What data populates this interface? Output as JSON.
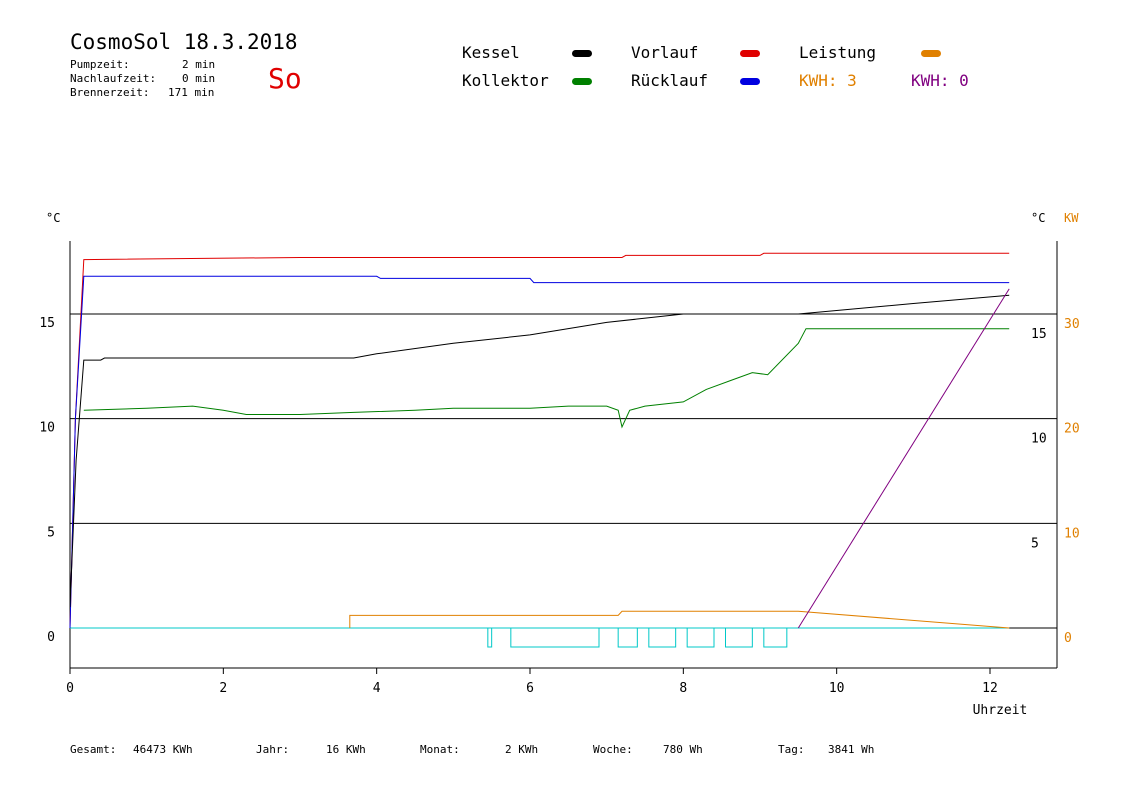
{
  "header": {
    "title": "CosmoSol 18.3.2018",
    "pump_label": "Pumpzeit:",
    "pump_value": "2 min",
    "nachlauf_label": "Nachlaufzeit:",
    "nachlauf_value": "0 min",
    "brenner_label": "Brennerzeit:",
    "brenner_value": "171 min",
    "weekday": "So"
  },
  "legend": {
    "kessel": "Kessel",
    "kollektor": "Kollektor",
    "vorlauf": "Vorlauf",
    "ruecklauf": "Rücklauf",
    "leistung": "Leistung",
    "kwh1": "KWH: 3",
    "kwh2": "KWH: 0"
  },
  "colors": {
    "kessel": "#000000",
    "kollektor": "#008000",
    "vorlauf": "#e00000",
    "ruecklauf": "#0000e0",
    "leistung": "#e08000",
    "kwh2": "#800080",
    "pump": "#00c8c8"
  },
  "footer": {
    "gesamt_label": "Gesamt:",
    "gesamt_value": "46473 KWh",
    "jahr_label": "Jahr:",
    "jahr_value": "16 KWh",
    "monat_label": "Monat:",
    "monat_value": "2 KWh",
    "woche_label": "Woche:",
    "woche_value": "780 Wh",
    "tag_label": "Tag:",
    "tag_value": "3841 Wh"
  },
  "chart_data": {
    "type": "line",
    "xlabel": "Uhrzeit",
    "xlim": [
      0,
      12.9
    ],
    "x_ticks": [
      "0",
      "2",
      "4",
      "6",
      "8",
      "10",
      "12"
    ],
    "y_left_unit": "°C",
    "y_left_ticks": [
      "0",
      "5",
      "10",
      "15"
    ],
    "y_right_unit": "°C",
    "y_right_ticks": [
      "5",
      "10",
      "15"
    ],
    "y_kw_unit": "KW",
    "y_kw_ticks": [
      "0",
      "10",
      "20",
      "30"
    ],
    "grid": true,
    "series": [
      {
        "key": "vorlauf",
        "points": [
          [
            0,
            0
          ],
          [
            0.07,
            10
          ],
          [
            0.18,
            17.6
          ],
          [
            3,
            17.7
          ],
          [
            7.2,
            17.7
          ],
          [
            7.25,
            17.8
          ],
          [
            9,
            17.8
          ],
          [
            9.05,
            17.9
          ],
          [
            12.25,
            17.9
          ]
        ]
      },
      {
        "key": "ruecklauf",
        "points": [
          [
            0,
            0
          ],
          [
            0.07,
            10
          ],
          [
            0.18,
            16.8
          ],
          [
            4,
            16.8
          ],
          [
            4.05,
            16.7
          ],
          [
            6,
            16.7
          ],
          [
            6.05,
            16.5
          ],
          [
            12.25,
            16.5
          ]
        ]
      },
      {
        "key": "kessel",
        "points": [
          [
            0,
            1
          ],
          [
            0.08,
            8
          ],
          [
            0.18,
            12.8
          ],
          [
            0.4,
            12.8
          ],
          [
            0.45,
            12.9
          ],
          [
            3.7,
            12.9
          ],
          [
            4,
            13.1
          ],
          [
            5,
            13.6
          ],
          [
            6,
            14
          ],
          [
            7,
            14.6
          ],
          [
            8,
            15
          ],
          [
            9.5,
            15
          ],
          [
            11,
            15.5
          ],
          [
            12.25,
            15.9
          ]
        ]
      },
      {
        "key": "kollektor",
        "points": [
          [
            0.18,
            10.4
          ],
          [
            1,
            10.5
          ],
          [
            1.6,
            10.6
          ],
          [
            2,
            10.4
          ],
          [
            2.3,
            10.2
          ],
          [
            3,
            10.2
          ],
          [
            3.7,
            10.3
          ],
          [
            4.5,
            10.4
          ],
          [
            5,
            10.5
          ],
          [
            5.5,
            10.5
          ],
          [
            6,
            10.5
          ],
          [
            6.5,
            10.6
          ],
          [
            7,
            10.6
          ],
          [
            7.15,
            10.4
          ],
          [
            7.2,
            9.6
          ],
          [
            7.3,
            10.4
          ],
          [
            7.5,
            10.6
          ],
          [
            8,
            10.8
          ],
          [
            8.3,
            11.4
          ],
          [
            8.6,
            11.8
          ],
          [
            8.9,
            12.2
          ],
          [
            9.1,
            12.1
          ],
          [
            9.5,
            13.6
          ],
          [
            9.6,
            14.3
          ],
          [
            12.25,
            14.3
          ]
        ]
      },
      {
        "key": "leistung",
        "points": [
          [
            3.65,
            0
          ],
          [
            3.65,
            0.6
          ],
          [
            7.15,
            0.6
          ],
          [
            7.2,
            0.8
          ],
          [
            9.5,
            0.8
          ],
          [
            12.25,
            0
          ]
        ]
      },
      {
        "key": "kwh2",
        "points": [
          [
            9.5,
            0
          ],
          [
            12.25,
            16.2
          ]
        ]
      }
    ],
    "pump_intervals": [
      [
        5.45,
        5.5
      ],
      [
        5.75,
        6.9
      ],
      [
        7.15,
        7.4
      ],
      [
        7.55,
        7.9
      ],
      [
        8.05,
        8.4
      ],
      [
        8.55,
        8.9
      ],
      [
        9.05,
        9.35
      ]
    ]
  }
}
